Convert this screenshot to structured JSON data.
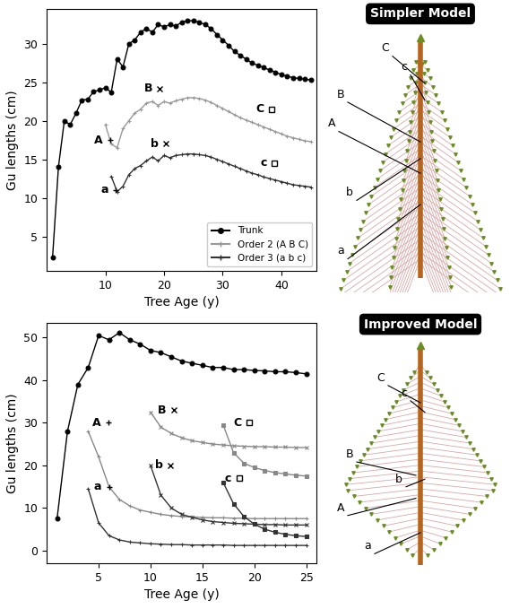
{
  "chart_data": [
    {
      "type": "line",
      "x_label": "Tree Age (y)",
      "y_label": "Gu lengths (cm)",
      "xlim": [
        0,
        46
      ],
      "xticks": [
        10,
        20,
        30,
        40
      ],
      "ylim": [
        0.5,
        34.5
      ],
      "yticks": [
        5,
        10,
        15,
        20,
        25,
        30
      ],
      "legend": "lower right",
      "series": [
        {
          "name": "Trunk",
          "color": "#000000",
          "marker": "circle",
          "line_style": "solid",
          "x": [
            1,
            2,
            3,
            4,
            5,
            6,
            7,
            8,
            9,
            10,
            11,
            12,
            13,
            14,
            15,
            16,
            17,
            18,
            19,
            20,
            21,
            22,
            23,
            24,
            25,
            26,
            27,
            28,
            29,
            30,
            31,
            32,
            33,
            34,
            35,
            36,
            37,
            38,
            39,
            40,
            41,
            42,
            43,
            44,
            45
          ],
          "values": [
            2.3,
            14,
            20,
            19.5,
            21,
            22.7,
            22.8,
            23.8,
            24,
            24.3,
            23.7,
            28,
            27,
            30,
            30.5,
            31.5,
            32,
            31.5,
            32.5,
            32.2,
            32.5,
            32.3,
            32.8,
            33,
            33,
            32.8,
            32.5,
            32,
            31.2,
            30.5,
            29.8,
            29,
            28.5,
            28,
            27.5,
            27.2,
            26.9,
            26.6,
            26.3,
            26,
            25.8,
            25.6,
            25.5,
            25.4,
            25.3
          ]
        },
        {
          "name": "Order 2 (A B C)",
          "color": "#999999",
          "marker": "plus",
          "line_style": "solid",
          "x": [
            10,
            11,
            12,
            13,
            14,
            15,
            16,
            17,
            18,
            19,
            20,
            21,
            22,
            23,
            24,
            25,
            26,
            27,
            28,
            29,
            30,
            31,
            32,
            33,
            34,
            35,
            36,
            37,
            38,
            39,
            40,
            41,
            42,
            43,
            44,
            45
          ],
          "values": [
            19.5,
            17,
            16.5,
            19,
            20,
            21,
            21.5,
            22.3,
            22.5,
            22,
            22.5,
            22.3,
            22.6,
            22.8,
            23,
            23,
            22.9,
            22.7,
            22.4,
            22,
            21.6,
            21.2,
            20.8,
            20.4,
            20.1,
            19.8,
            19.5,
            19.2,
            18.9,
            18.6,
            18.3,
            18,
            17.8,
            17.6,
            17.4,
            17.3
          ]
        },
        {
          "name": "Order 3 (a b c)",
          "color": "#333333",
          "marker": "plus",
          "line_style": "solid",
          "x": [
            11,
            12,
            13,
            14,
            15,
            16,
            17,
            18,
            19,
            20,
            21,
            22,
            23,
            24,
            25,
            26,
            27,
            28,
            29,
            30,
            31,
            32,
            33,
            34,
            35,
            36,
            37,
            38,
            39,
            40,
            41,
            42,
            43,
            44,
            45
          ],
          "values": [
            12.8,
            10.8,
            11.5,
            13,
            13.8,
            14.2,
            14.8,
            15.3,
            14.8,
            15.5,
            15.2,
            15.5,
            15.6,
            15.7,
            15.7,
            15.6,
            15.5,
            15.3,
            15,
            14.7,
            14.4,
            14.1,
            13.8,
            13.5,
            13.2,
            13,
            12.7,
            12.5,
            12.3,
            12.1,
            11.9,
            11.7,
            11.6,
            11.5,
            11.4
          ]
        }
      ],
      "annotations": [
        {
          "text": "A",
          "x": 9.5,
          "y": 17.5,
          "marker": "plus"
        },
        {
          "text": "B",
          "x": 18,
          "y": 24.2,
          "marker": "x"
        },
        {
          "text": "C",
          "x": 37,
          "y": 21.5,
          "marker": "square"
        },
        {
          "text": "a",
          "x": 10.5,
          "y": 11,
          "marker": "plus"
        },
        {
          "text": "b",
          "x": 19,
          "y": 17,
          "marker": "x"
        },
        {
          "text": "c",
          "x": 37.5,
          "y": 14.5,
          "marker": "square"
        }
      ]
    },
    {
      "type": "line",
      "x_label": "Tree Age (y)",
      "y_label": "Gu lengths (cm)",
      "xlim": [
        0,
        26
      ],
      "xticks": [
        5,
        10,
        15,
        20,
        25
      ],
      "ylim": [
        -3,
        53.5
      ],
      "yticks": [
        0,
        10,
        20,
        30,
        40,
        50
      ],
      "series": [
        {
          "color": "#000000",
          "marker": "circle",
          "line_style": "solid",
          "x": [
            1,
            2,
            3,
            4,
            5,
            6,
            7,
            8,
            9,
            10,
            11,
            12,
            13,
            14,
            15,
            16,
            17,
            18,
            19,
            20,
            21,
            22,
            23,
            24,
            25
          ],
          "values": [
            7.5,
            28,
            39,
            43,
            50.5,
            49.5,
            51.2,
            49.5,
            48.5,
            47,
            46.5,
            45.5,
            44.5,
            44,
            43.5,
            43,
            43,
            42.5,
            42.5,
            42.3,
            42.2,
            42,
            42,
            41.8,
            41.5
          ]
        },
        {
          "color": "#888888",
          "marker": "plus",
          "line_style": "solid",
          "x": [
            4,
            5,
            6,
            7,
            8,
            9,
            10,
            11,
            12,
            13,
            14,
            15,
            16,
            17,
            18,
            19,
            20,
            21,
            22,
            23,
            24,
            25
          ],
          "values": [
            28,
            22,
            15,
            12,
            10.5,
            9.5,
            9,
            8.5,
            8.2,
            8,
            7.9,
            7.8,
            7.7,
            7.7,
            7.6,
            7.6,
            7.5,
            7.5,
            7.5,
            7.5,
            7.5,
            7.5
          ]
        },
        {
          "color": "#888888",
          "marker": "x",
          "line_style": "solid",
          "x": [
            10,
            11,
            12,
            13,
            14,
            15,
            16,
            17,
            18,
            19,
            20,
            21,
            22,
            23,
            24,
            25
          ],
          "values": [
            32.5,
            29,
            27.5,
            26.5,
            25.8,
            25.4,
            25,
            24.8,
            24.6,
            24.5,
            24.4,
            24.4,
            24.3,
            24.3,
            24.2,
            24.2
          ]
        },
        {
          "color": "#888888",
          "marker": "square",
          "line_style": "solid",
          "x": [
            17,
            18,
            19,
            20,
            21,
            22,
            23,
            24,
            25
          ],
          "values": [
            29.5,
            23,
            20.5,
            19.5,
            18.8,
            18.3,
            18,
            17.7,
            17.5
          ]
        },
        {
          "color": "#333333",
          "marker": "plus",
          "line_style": "solid",
          "x": [
            4,
            5,
            6,
            7,
            8,
            9,
            10,
            11,
            12,
            13,
            14,
            15,
            16,
            17,
            18,
            19,
            20,
            21,
            22,
            23,
            24,
            25
          ],
          "values": [
            14.5,
            6.5,
            3.5,
            2.5,
            2,
            1.8,
            1.6,
            1.5,
            1.4,
            1.4,
            1.3,
            1.3,
            1.3,
            1.3,
            1.2,
            1.2,
            1.2,
            1.2,
            1.2,
            1.2,
            1.2,
            1.2
          ]
        },
        {
          "color": "#333333",
          "marker": "x",
          "line_style": "solid",
          "x": [
            10,
            11,
            12,
            13,
            14,
            15,
            16,
            17,
            18,
            19,
            20,
            21,
            22,
            23,
            24,
            25
          ],
          "values": [
            20,
            13,
            10,
            8.5,
            7.8,
            7.2,
            6.8,
            6.6,
            6.4,
            6.3,
            6.2,
            6.1,
            6.1,
            6,
            6,
            6
          ]
        },
        {
          "color": "#333333",
          "marker": "square",
          "line_style": "solid",
          "x": [
            17,
            18,
            19,
            20,
            21,
            22,
            23,
            24,
            25
          ],
          "values": [
            16,
            11,
            8,
            6.2,
            5,
            4.3,
            3.8,
            3.5,
            3.3
          ]
        }
      ],
      "annotations": [
        {
          "text": "A",
          "x": 5.2,
          "y": 30,
          "marker": "plus"
        },
        {
          "text": "B",
          "x": 11.5,
          "y": 33,
          "marker": "x"
        },
        {
          "text": "C",
          "x": 18.8,
          "y": 30,
          "marker": "square"
        },
        {
          "text": "a",
          "x": 5.3,
          "y": 15,
          "marker": "plus"
        },
        {
          "text": "b",
          "x": 11.2,
          "y": 20,
          "marker": "x"
        },
        {
          "text": "c",
          "x": 17.8,
          "y": 17,
          "marker": "square"
        }
      ]
    }
  ],
  "diagrams": [
    {
      "title": "Simpler Model",
      "labels": [
        "A",
        "B",
        "C",
        "a",
        "b",
        "c"
      ]
    },
    {
      "title": "Improved Model",
      "labels": [
        "A",
        "B",
        "C",
        "a",
        "b",
        "c"
      ]
    }
  ]
}
